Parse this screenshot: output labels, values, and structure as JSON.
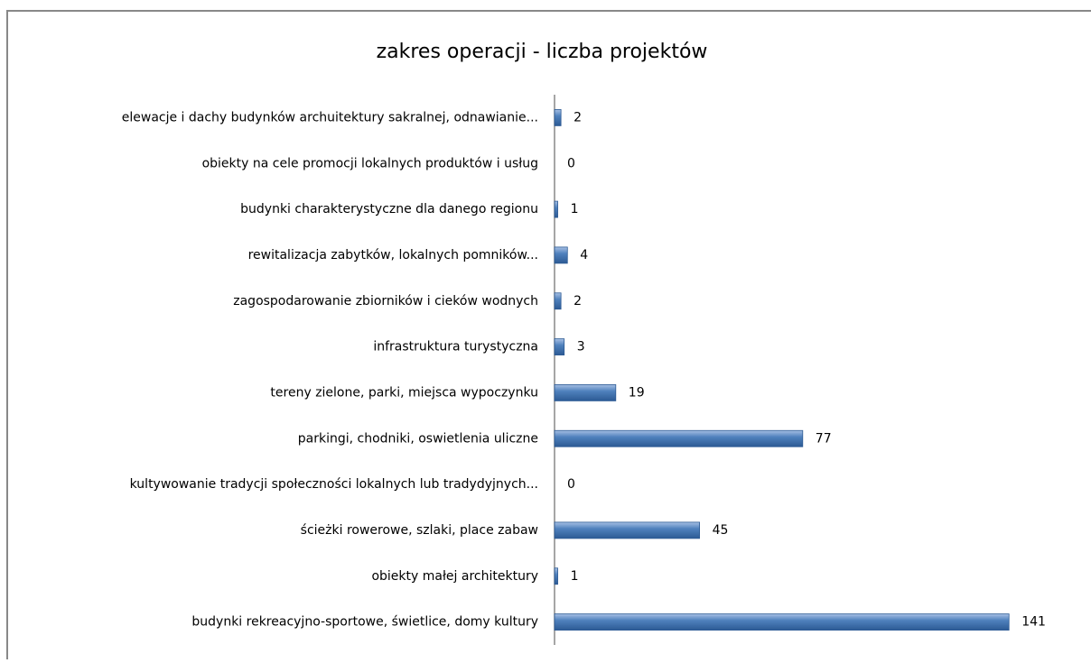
{
  "chart_data": {
    "type": "bar",
    "orientation": "horizontal",
    "title": "zakres operacji - liczba projektów",
    "categories": [
      "elewacje i dachy budynków archuitektury sakralnej, odnawianie...",
      "obiekty na cele promocji lokalnych produktów i usług",
      "budynki charakterystyczne dla danego regionu",
      "rewitalizacja zabytków, lokalnych pomników...",
      "zagospodarowanie zbiorników i cieków wodnych",
      "infrastruktura turystyczna",
      "tereny zielone, parki, miejsca wypoczynku",
      "parkingi, chodniki, oswietlenia uliczne",
      "kultywowanie tradycji społeczności lokalnych lub tradydyjnych...",
      "ścieżki rowerowe, szlaki, place zabaw",
      "obiekty małej architektury",
      "budynki rekreacyjno-sportowe, świetlice, domy kultury"
    ],
    "values": [
      2,
      0,
      1,
      4,
      2,
      3,
      19,
      77,
      0,
      45,
      1,
      141
    ],
    "color": "#4f81bd",
    "xlim": [
      0,
      160
    ]
  }
}
